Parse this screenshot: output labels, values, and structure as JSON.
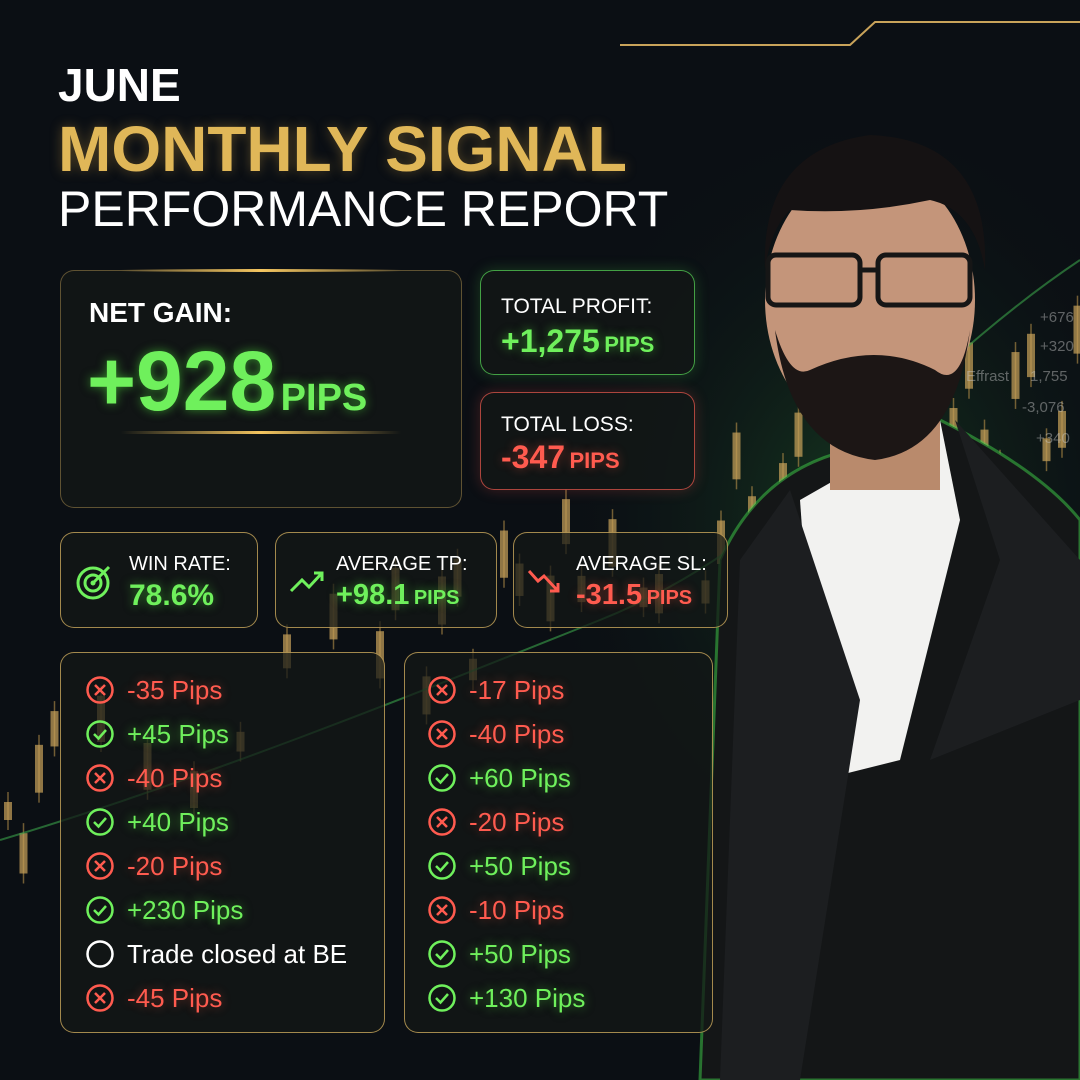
{
  "header": {
    "month": "JUNE",
    "title": "MONTHLY SIGNAL",
    "subtitle": "PERFORMANCE REPORT"
  },
  "net_gain": {
    "label": "NET GAIN:",
    "value": "+928",
    "unit": "PIPS"
  },
  "total_profit": {
    "label": "TOTAL PROFIT:",
    "value": "+1,275",
    "unit": "PIPS"
  },
  "total_loss": {
    "label": "TOTAL LOSS:",
    "value": "-347",
    "unit": "PIPS"
  },
  "win_rate": {
    "label": "WIN RATE:",
    "value": "78.6%"
  },
  "average_tp": {
    "label": "AVERAGE TP:",
    "value": "+98.1",
    "unit": "PIPS"
  },
  "average_sl": {
    "label": "AVERAGE SL:",
    "value": "-31.5",
    "unit": "PIPS"
  },
  "trades": [
    [
      {
        "icon": "x",
        "text": "-35 Pips"
      },
      {
        "icon": "check",
        "text": "+45 Pips"
      },
      {
        "icon": "x",
        "text": "-40 Pips"
      },
      {
        "icon": "check",
        "text": "+40 Pips"
      },
      {
        "icon": "x",
        "text": "-20 Pips"
      },
      {
        "icon": "check",
        "text": "+230 Pips"
      },
      {
        "icon": "circle",
        "text": "Trade closed at BE"
      },
      {
        "icon": "x",
        "text": "-45 Pips"
      }
    ],
    [
      {
        "icon": "x",
        "text": "-17 Pips"
      },
      {
        "icon": "x",
        "text": "-40 Pips"
      },
      {
        "icon": "check",
        "text": "+60 Pips"
      },
      {
        "icon": "x",
        "text": "-20 Pips"
      },
      {
        "icon": "check",
        "text": "+50 Pips"
      },
      {
        "icon": "x",
        "text": "-10 Pips"
      },
      {
        "icon": "check",
        "text": "+50 Pips"
      },
      {
        "icon": "check",
        "text": "+130 Pips"
      }
    ]
  ],
  "background_labels": [
    "+676",
    "+320",
    "Effrast",
    "1,755",
    "-3,076",
    "+340"
  ]
}
